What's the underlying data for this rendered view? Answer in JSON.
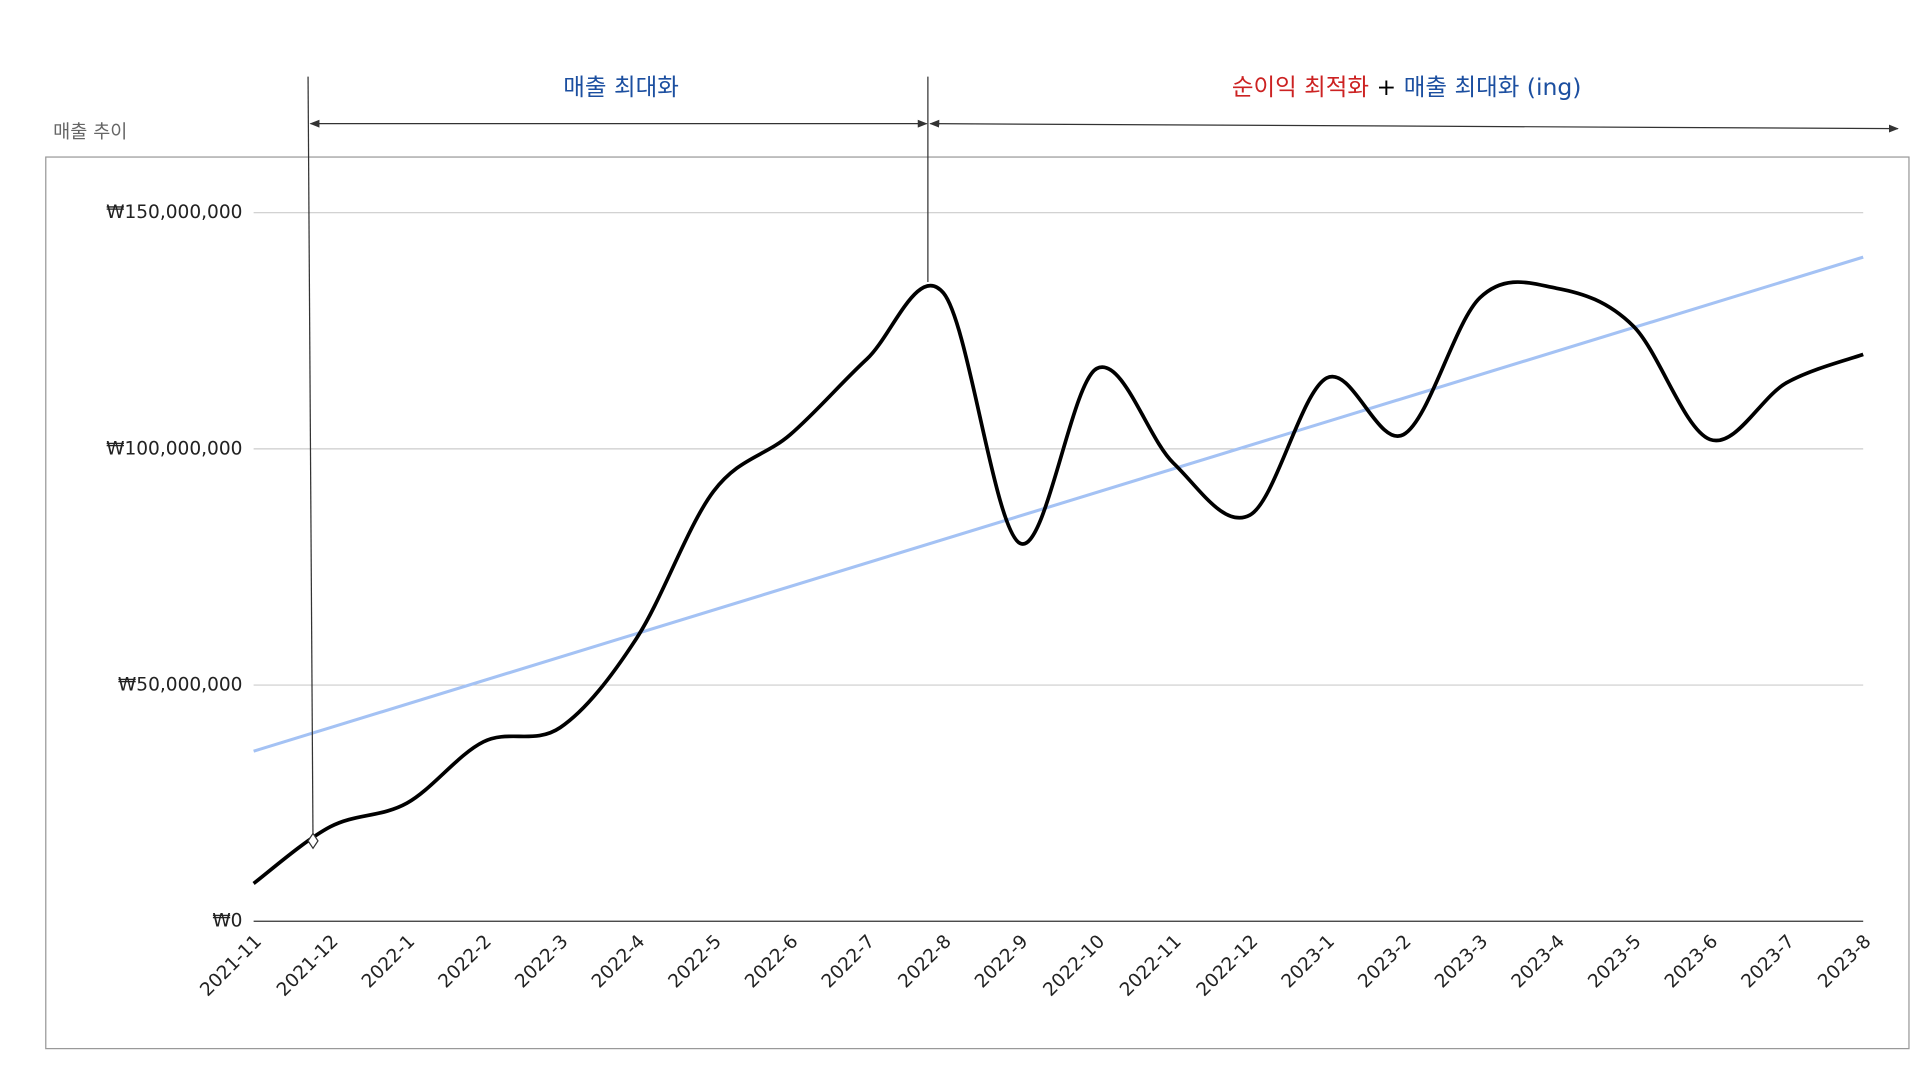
{
  "chart_data": {
    "type": "line",
    "title": "매출 추이",
    "categories": [
      "2021-11",
      "2021-12",
      "2022-1",
      "2022-2",
      "2022-3",
      "2022-4",
      "2022-5",
      "2022-6",
      "2022-7",
      "2022-8",
      "2022-9",
      "2022-10",
      "2022-11",
      "2022-12",
      "2023-1",
      "2023-2",
      "2023-3",
      "2023-4",
      "2023-5",
      "2023-6",
      "2023-7",
      "2023-8"
    ],
    "series": [
      {
        "color": "#000000",
        "values": [
          8000000,
          20000000,
          25000000,
          38000000,
          41000000,
          60000000,
          91000000,
          103000000,
          119000000,
          133000000,
          80000000,
          117000000,
          97000000,
          86000000,
          115000000,
          103000000,
          132000000,
          134000000,
          126000000,
          102000000,
          114000000,
          120000000
        ]
      }
    ],
    "trendline": {
      "color": "#a4c2f4",
      "values": [
        36000000,
        140600000
      ]
    },
    "ylim": [
      0,
      150000000
    ],
    "yticks": [
      {
        "value": 0,
        "label": "₩0"
      },
      {
        "value": 50000000,
        "label": "₩50,000,000"
      },
      {
        "value": 100000000,
        "label": "₩100,000,000"
      },
      {
        "value": 150000000,
        "label": "₩150,000,000"
      }
    ],
    "grid": true,
    "phases": [
      {
        "parts": [
          {
            "text": "매출 최대화",
            "color": "#1c4fa0"
          }
        ]
      },
      {
        "parts": [
          {
            "text": "순이익 최적화",
            "color": "#cc2222"
          },
          {
            "text": " + ",
            "color": "#000000"
          },
          {
            "text": "매출 최대화 (ing)",
            "color": "#1c4fa0"
          }
        ]
      }
    ]
  }
}
